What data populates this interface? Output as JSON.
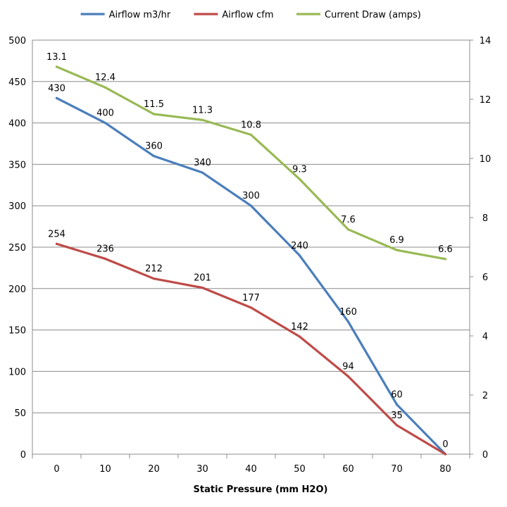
{
  "chart_data": {
    "type": "line",
    "title": "",
    "xlabel": "Static Pressure (mm H2O)",
    "ylabel": "",
    "categories": [
      "0",
      "10",
      "20",
      "30",
      "40",
      "50",
      "60",
      "70",
      "80"
    ],
    "ylim": [
      0,
      500
    ],
    "yticks": [
      "0",
      "50",
      "100",
      "150",
      "200",
      "250",
      "300",
      "350",
      "400",
      "450",
      "500"
    ],
    "y2lim": [
      0,
      14
    ],
    "y2ticks": [
      "0",
      "2",
      "4",
      "6",
      "8",
      "10",
      "12",
      "14"
    ],
    "grid": true,
    "legend_position": "top",
    "series": [
      {
        "name": "Airflow m3/hr",
        "axis": "left",
        "color": "#4a7ebb",
        "values": [
          430,
          400,
          360,
          340,
          300,
          240,
          160,
          60,
          0
        ],
        "labels": [
          "430",
          "400",
          "360",
          "340",
          "300",
          "240",
          "160",
          "60",
          "0"
        ]
      },
      {
        "name": "Airflow cfm",
        "axis": "left",
        "color": "#be4b48",
        "values": [
          254,
          236,
          212,
          201,
          177,
          142,
          94,
          35,
          0
        ],
        "labels": [
          "254",
          "236",
          "212",
          "201",
          "177",
          "142",
          "94",
          "35",
          ""
        ]
      },
      {
        "name": "Current Draw (amps)",
        "axis": "right",
        "color": "#98b954",
        "values": [
          13.1,
          12.4,
          11.5,
          11.3,
          10.8,
          9.3,
          7.6,
          6.9,
          6.6
        ],
        "labels": [
          "13.1",
          "12.4",
          "11.5",
          "11.3",
          "10.8",
          "9.3",
          "7.6",
          "6.9",
          "6.6"
        ]
      }
    ]
  }
}
